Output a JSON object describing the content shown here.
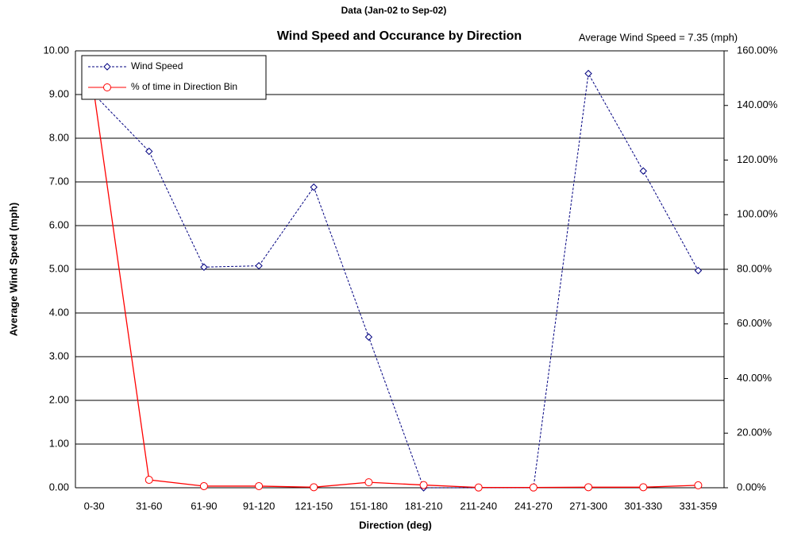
{
  "chart_data": {
    "type": "line",
    "subtitle": "Data (Jan-02 to Sep-02)",
    "title": "Wind Speed and Occurance by Direction",
    "annotation": "Average Wind Speed = 7.35 (mph)",
    "x_label": "Direction (deg)",
    "y_label": "Average Wind Speed (mph)",
    "categories": [
      "0-30",
      "31-60",
      "61-90",
      "91-120",
      "121-150",
      "151-180",
      "181-210",
      "211-240",
      "241-270",
      "271-300",
      "301-330",
      "331-359"
    ],
    "series": [
      {
        "name": "Wind Speed",
        "color": "#000080",
        "marker": "diamond",
        "dashed": true,
        "values": [
          9.0,
          7.7,
          5.05,
          5.08,
          6.88,
          3.45,
          0.0,
          0.0,
          0.0,
          9.48,
          7.25,
          4.97
        ]
      },
      {
        "name": "% of time in Direction Bin",
        "color": "#ff0000",
        "marker": "circle",
        "dashed": false,
        "axis": "y2",
        "values": [
          144.3,
          2.9,
          0.6,
          0.6,
          0.2,
          2.0,
          1.0,
          0.1,
          0.1,
          0.2,
          0.2,
          0.9
        ]
      }
    ],
    "ylim": [
      0,
      10
    ],
    "yticks": [
      {
        "value": 0,
        "label": "0.00"
      },
      {
        "value": 1,
        "label": "1.00"
      },
      {
        "value": 2,
        "label": "2.00"
      },
      {
        "value": 3,
        "label": "3.00"
      },
      {
        "value": 4,
        "label": "4.00"
      },
      {
        "value": 5,
        "label": "5.00"
      },
      {
        "value": 6,
        "label": "6.00"
      },
      {
        "value": 7,
        "label": "7.00"
      },
      {
        "value": 8,
        "label": "8.00"
      },
      {
        "value": 9,
        "label": "9.00"
      },
      {
        "value": 10,
        "label": "10.00"
      }
    ],
    "y2lim": [
      0,
      160
    ],
    "y2ticks": [
      {
        "value": 0,
        "label": "0.00%"
      },
      {
        "value": 20,
        "label": "20.00%"
      },
      {
        "value": 40,
        "label": "40.00%"
      },
      {
        "value": 60,
        "label": "60.00%"
      },
      {
        "value": 80,
        "label": "80.00%"
      },
      {
        "value": 100,
        "label": "100.00%"
      },
      {
        "value": 120,
        "label": "120.00%"
      },
      {
        "value": 140,
        "label": "140.00%"
      },
      {
        "value": 160,
        "label": "160.00%"
      }
    ],
    "grid": true,
    "legend": "top-left"
  }
}
